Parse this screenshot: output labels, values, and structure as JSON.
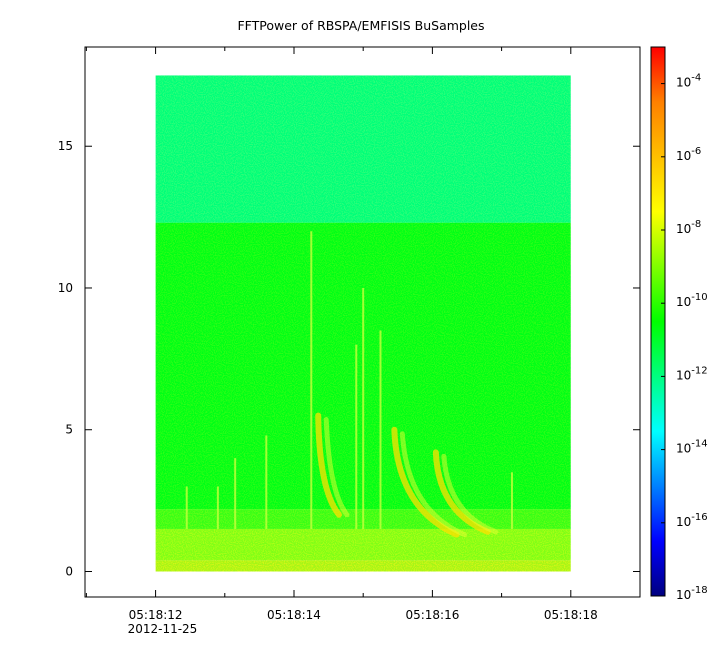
{
  "chart_data": {
    "type": "heatmap",
    "title": "FFTPower of RBSPA/EMFISIS  BuSamples",
    "xlabel": "",
    "ylabel": "",
    "x_ticks": [
      {
        "label": "05:18:12",
        "sublabel": "2012-11-25",
        "t": 12
      },
      {
        "label": "05:18:14",
        "sublabel": "",
        "t": 14
      },
      {
        "label": "05:18:16",
        "sublabel": "",
        "t": 16
      },
      {
        "label": "05:18:18",
        "sublabel": "",
        "t": 18
      }
    ],
    "x_minor_ticks": [
      11,
      13,
      15,
      17,
      19
    ],
    "xlim": [
      10.98,
      19.0
    ],
    "data_xlim": [
      12.0,
      18.0
    ],
    "y_ticks": [
      0,
      5,
      10,
      15
    ],
    "ylim": [
      -0.9,
      18.5
    ],
    "data_ylim": [
      0,
      17.5
    ],
    "colorbar": {
      "scale": "log",
      "range": [
        1e-18,
        0.001
      ],
      "ticks": [
        {
          "base": "10",
          "exp": "-4",
          "value": 0.0001
        },
        {
          "base": "10",
          "exp": "-6",
          "value": 1e-06
        },
        {
          "base": "10",
          "exp": "-8",
          "value": 1e-08
        },
        {
          "base": "10",
          "exp": "-10",
          "value": 1e-10
        },
        {
          "base": "10",
          "exp": "-12",
          "value": 1e-12
        },
        {
          "base": "10",
          "exp": "-14",
          "value": 1e-14
        },
        {
          "base": "10",
          "exp": "-16",
          "value": 1e-16
        },
        {
          "base": "10",
          "exp": "-18",
          "value": 1e-18
        }
      ],
      "colormap": [
        "#00007f",
        "#0000ff",
        "#0080ff",
        "#00ffff",
        "#00ff80",
        "#00ff00",
        "#80ff00",
        "#ffff00",
        "#ffc000",
        "#ff8000",
        "#ff0000"
      ]
    },
    "bands": [
      {
        "y_from": 12.3,
        "y_to": 17.5,
        "level_log": -12.3
      },
      {
        "y_from": 2.2,
        "y_to": 12.3,
        "level_log": -10.5
      },
      {
        "y_from": 1.5,
        "y_to": 2.2,
        "level_log": -9.5
      },
      {
        "y_from": 0.4,
        "y_to": 1.5,
        "level_log": -8.2
      },
      {
        "y_from": 0.0,
        "y_to": 0.4,
        "level_log": -7.2
      }
    ],
    "features": [
      {
        "type": "chorus",
        "t_start": 15.45,
        "t_end": 16.35,
        "f_start": 5.0,
        "f_end": 1.3
      },
      {
        "type": "chorus",
        "t_start": 16.05,
        "t_end": 16.8,
        "f_start": 4.2,
        "f_end": 1.4
      },
      {
        "type": "chorus",
        "t_start": 14.35,
        "t_end": 14.65,
        "f_start": 5.5,
        "f_end": 2.0
      },
      {
        "type": "spike",
        "t": 14.25,
        "f_from": 1.5,
        "f_to": 12.0
      },
      {
        "type": "spike",
        "t": 14.9,
        "f_from": 1.5,
        "f_to": 8.0
      },
      {
        "type": "spike",
        "t": 15.25,
        "f_from": 1.5,
        "f_to": 8.5
      },
      {
        "type": "spike",
        "t": 15.0,
        "f_from": 1.5,
        "f_to": 10.0
      },
      {
        "type": "spike",
        "t": 13.6,
        "f_from": 1.5,
        "f_to": 4.8
      },
      {
        "type": "spike",
        "t": 13.15,
        "f_from": 1.5,
        "f_to": 4.0
      },
      {
        "type": "spike",
        "t": 12.9,
        "f_from": 1.5,
        "f_to": 3.0
      },
      {
        "type": "spike",
        "t": 12.45,
        "f_from": 1.5,
        "f_to": 3.0
      },
      {
        "type": "spike",
        "t": 17.15,
        "f_from": 1.5,
        "f_to": 3.5
      }
    ]
  }
}
